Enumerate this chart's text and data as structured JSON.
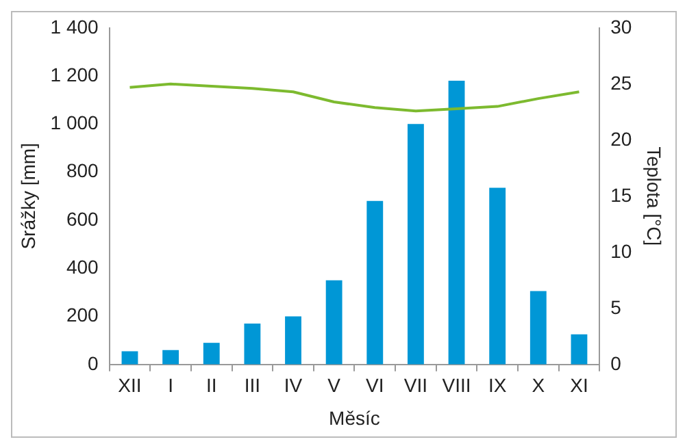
{
  "chart_data": {
    "type": "bar",
    "xlabel": "Měsíc",
    "ylabel": "Srážky [mm]",
    "y2label": "Teplota [°C]",
    "categories": [
      "XII",
      "I",
      "II",
      "III",
      "IV",
      "V",
      "VI",
      "VII",
      "VIII",
      "IX",
      "X",
      "XI"
    ],
    "series": [
      {
        "color": "#0097d6",
        "values": [
          55,
          60,
          90,
          170,
          200,
          350,
          680,
          1000,
          1180,
          735,
          305,
          125
        ]
      },
      {
        "type": "line",
        "axis": "y2",
        "color": "#7dba2f",
        "values": [
          24.7,
          25.0,
          24.8,
          24.6,
          24.3,
          23.4,
          22.9,
          22.6,
          22.8,
          23.0,
          23.7,
          24.3
        ]
      }
    ],
    "ylim": [
      0,
      1400
    ],
    "yticks": [
      0,
      200,
      400,
      600,
      800,
      {
        "value": 1000,
        "label": "1 000"
      },
      {
        "value": 1200,
        "label": "1 200"
      },
      {
        "value": 1400,
        "label": "1 400"
      }
    ],
    "y2lim": [
      0,
      30
    ],
    "y2ticks": [
      0,
      5,
      10,
      15,
      20,
      25,
      30
    ],
    "marker": "none",
    "legend": false,
    "grid": false
  }
}
